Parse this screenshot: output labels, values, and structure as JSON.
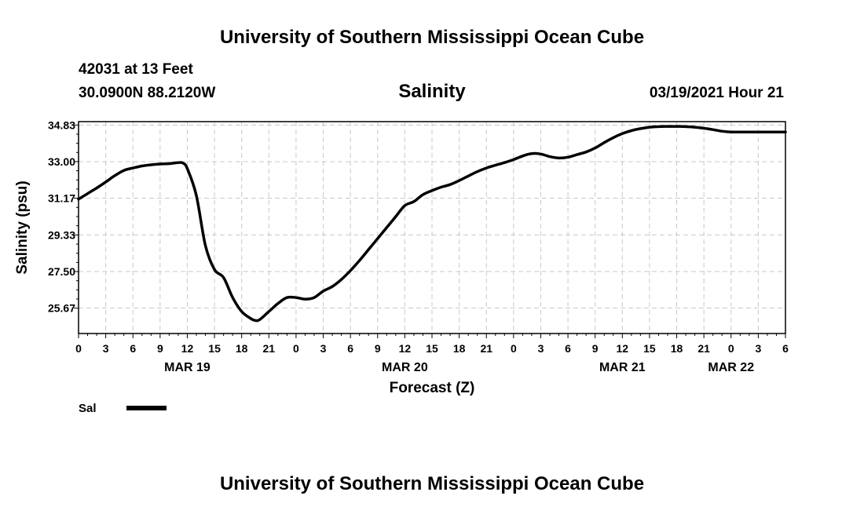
{
  "header": {
    "title": "University of Southern Mississippi Ocean Cube",
    "station": "42031 at 13 Feet",
    "location": "30.0900N 88.2120W",
    "variable": "Salinity",
    "issued": "03/19/2021 Hour 21"
  },
  "footer": {
    "title": "University of Southern Mississippi Ocean Cube"
  },
  "legend": {
    "label": "Sal"
  },
  "chart_data": {
    "type": "line",
    "title": "Salinity",
    "xlabel": "Forecast (Z)",
    "ylabel": "Salinity (psu)",
    "xlim": [
      0,
      78
    ],
    "ylim": [
      24.4,
      35.0
    ],
    "grid": true,
    "legend_position": "bottom-left",
    "yticks": [
      {
        "value": 34.83,
        "label": "34.83"
      },
      {
        "value": 33.0,
        "label": "33.00"
      },
      {
        "value": 31.17,
        "label": "31.17"
      },
      {
        "value": 29.33,
        "label": "29.33"
      },
      {
        "value": 27.5,
        "label": "27.50"
      },
      {
        "value": 25.67,
        "label": "25.67"
      }
    ],
    "xticks": [
      {
        "value": 0,
        "label": "0"
      },
      {
        "value": 3,
        "label": "3"
      },
      {
        "value": 6,
        "label": "6"
      },
      {
        "value": 9,
        "label": "9"
      },
      {
        "value": 12,
        "label": "12"
      },
      {
        "value": 15,
        "label": "15"
      },
      {
        "value": 18,
        "label": "18"
      },
      {
        "value": 21,
        "label": "21"
      },
      {
        "value": 24,
        "label": "0"
      },
      {
        "value": 27,
        "label": "3"
      },
      {
        "value": 30,
        "label": "6"
      },
      {
        "value": 33,
        "label": "9"
      },
      {
        "value": 36,
        "label": "12"
      },
      {
        "value": 39,
        "label": "15"
      },
      {
        "value": 42,
        "label": "18"
      },
      {
        "value": 45,
        "label": "21"
      },
      {
        "value": 48,
        "label": "0"
      },
      {
        "value": 51,
        "label": "3"
      },
      {
        "value": 54,
        "label": "6"
      },
      {
        "value": 57,
        "label": "9"
      },
      {
        "value": 60,
        "label": "12"
      },
      {
        "value": 63,
        "label": "15"
      },
      {
        "value": 66,
        "label": "18"
      },
      {
        "value": 69,
        "label": "21"
      },
      {
        "value": 72,
        "label": "0"
      },
      {
        "value": 75,
        "label": "3"
      },
      {
        "value": 78,
        "label": "6"
      }
    ],
    "date_labels": [
      {
        "value": 12,
        "label": "MAR 19"
      },
      {
        "value": 36,
        "label": "MAR 20"
      },
      {
        "value": 60,
        "label": "MAR 21"
      },
      {
        "value": 72,
        "label": "MAR 22"
      }
    ],
    "series": [
      {
        "name": "Sal",
        "x": [
          0,
          1,
          2,
          3,
          4,
          5,
          6,
          7,
          8,
          9,
          10,
          11,
          11.5,
          12,
          13,
          14,
          15,
          16,
          17,
          18,
          19,
          19.5,
          20,
          21,
          22,
          23,
          24,
          25,
          26,
          27,
          28,
          29,
          30,
          31,
          32,
          33,
          34,
          35,
          36,
          37,
          38,
          39,
          40,
          41,
          42,
          43,
          44,
          45,
          46,
          47,
          48,
          49,
          50,
          51,
          52,
          53,
          54,
          55,
          56,
          57,
          58,
          59,
          60,
          61,
          62,
          63,
          64,
          65,
          66,
          67,
          68,
          69,
          70,
          71,
          72,
          73,
          74,
          75,
          76,
          77,
          78
        ],
        "values": [
          31.12,
          31.4,
          31.68,
          31.98,
          32.3,
          32.56,
          32.68,
          32.78,
          32.84,
          32.88,
          32.9,
          32.95,
          32.93,
          32.65,
          31.3,
          28.8,
          27.6,
          27.2,
          26.2,
          25.5,
          25.15,
          25.05,
          25.1,
          25.5,
          25.9,
          26.2,
          26.2,
          26.12,
          26.2,
          26.52,
          26.75,
          27.1,
          27.55,
          28.05,
          28.6,
          29.15,
          29.7,
          30.25,
          30.8,
          31.0,
          31.35,
          31.55,
          31.72,
          31.85,
          32.05,
          32.28,
          32.5,
          32.68,
          32.82,
          32.95,
          33.1,
          33.28,
          33.4,
          33.38,
          33.25,
          33.18,
          33.22,
          33.35,
          33.48,
          33.68,
          33.95,
          34.2,
          34.4,
          34.55,
          34.65,
          34.72,
          34.75,
          34.76,
          34.76,
          34.75,
          34.72,
          34.67,
          34.6,
          34.52,
          34.48,
          34.48,
          34.48,
          34.48,
          34.48,
          34.48,
          34.48
        ],
        "color": "#000000"
      }
    ]
  }
}
